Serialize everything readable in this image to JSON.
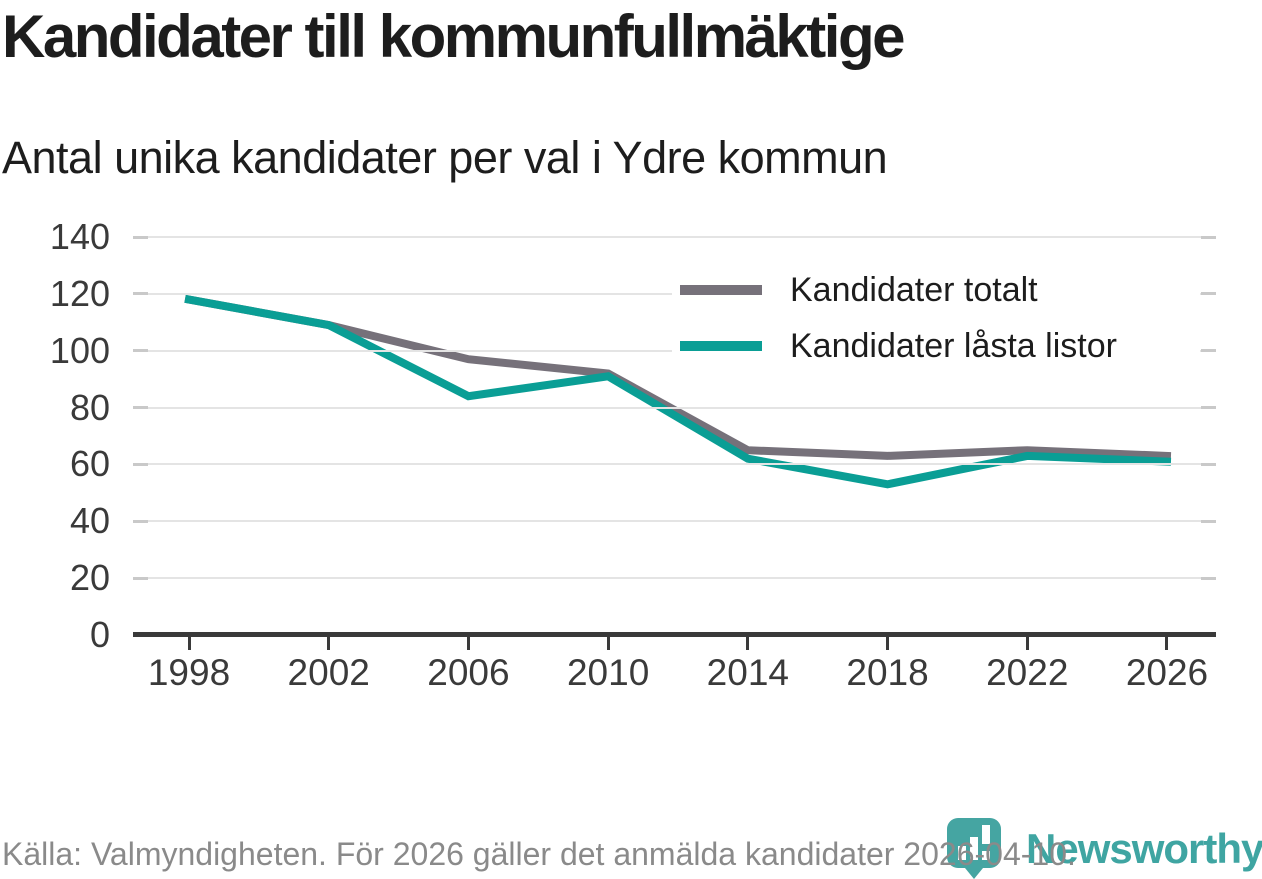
{
  "header": {
    "title": "Kandidater till kommunfullmäktige",
    "subtitle": "Antal unika kandidater per val i Ydre kommun"
  },
  "chart_data": {
    "type": "line",
    "title": "Kandidater till kommunfullmäktige",
    "subtitle": "Antal unika kandidater per val i Ydre kommun",
    "x": [
      1998,
      2002,
      2006,
      2010,
      2014,
      2018,
      2022,
      2026
    ],
    "series": [
      {
        "name": "Kandidater totalt",
        "color": "#76717a",
        "values": [
          118,
          109,
          97,
          92,
          65,
          63,
          65,
          63
        ]
      },
      {
        "name": "Kandidater låsta listor",
        "color": "#0a9e95",
        "values": [
          118,
          109,
          84,
          91,
          62,
          53,
          63,
          61
        ]
      }
    ],
    "xlabel": "",
    "ylabel": "",
    "ylim": [
      0,
      140
    ],
    "yticks": [
      0,
      20,
      40,
      60,
      80,
      100,
      120,
      140
    ],
    "grid": "horizontal",
    "legend_position": "inside-top-right"
  },
  "footer": {
    "source": "Källa: Valmyndigheten. För 2026 gäller det anmälda kandidater 2026-04-10.",
    "brand": "Newsworthy",
    "logo_icon": "newsworthy-pin-icon"
  },
  "colors": {
    "series_total": "#76717a",
    "series_locked": "#0a9e95",
    "gridline": "#e4e4e4",
    "axis": "#3a3a3a",
    "text": "#1d1d1d",
    "source_text": "#8a8a8a",
    "brand_teal": "#3fa5a2",
    "background": "#ffffff"
  }
}
